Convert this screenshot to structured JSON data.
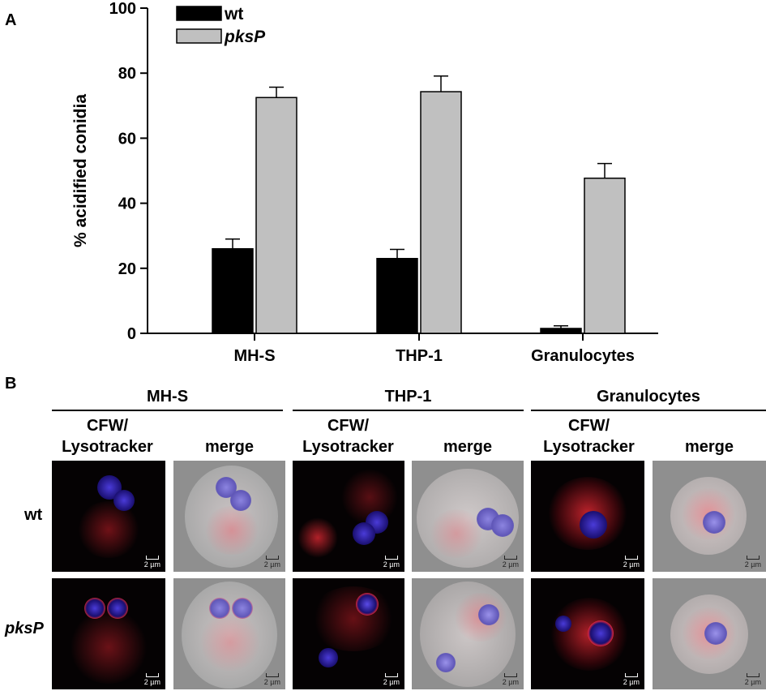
{
  "panel_a_label": "A",
  "panel_b_label": "B",
  "chart_data": {
    "type": "bar",
    "categories": [
      "MH-S",
      "THP-1",
      "Granulocytes"
    ],
    "series": [
      {
        "name": "wt",
        "values": [
          26,
          23,
          1.5
        ],
        "errors": [
          3,
          2.8,
          0.8
        ],
        "color": "#000000"
      },
      {
        "name": "pksP",
        "values": [
          72.5,
          74.3,
          47.7
        ],
        "errors": [
          3.2,
          4.8,
          4.5
        ],
        "color": "#c0c0c0"
      }
    ],
    "ylabel": "% acidified conidia",
    "xlabel": "",
    "ylim": [
      0,
      100
    ],
    "yticks": [
      0,
      20,
      40,
      60,
      80,
      100
    ],
    "legend_position": "top-left",
    "grid": false
  },
  "panel_b": {
    "groups": [
      {
        "title": "MH-S",
        "col1": "CFW/\nLysotracker",
        "col2": "merge"
      },
      {
        "title": "THP-1",
        "col1": "CFW/\nLysotracker",
        "col2": "merge"
      },
      {
        "title": "Granulocytes",
        "col1": "CFW/\nLysotracker",
        "col2": "merge"
      }
    ],
    "rows": [
      "wt",
      "pksP"
    ],
    "scale_bar_label": "2 µm"
  }
}
